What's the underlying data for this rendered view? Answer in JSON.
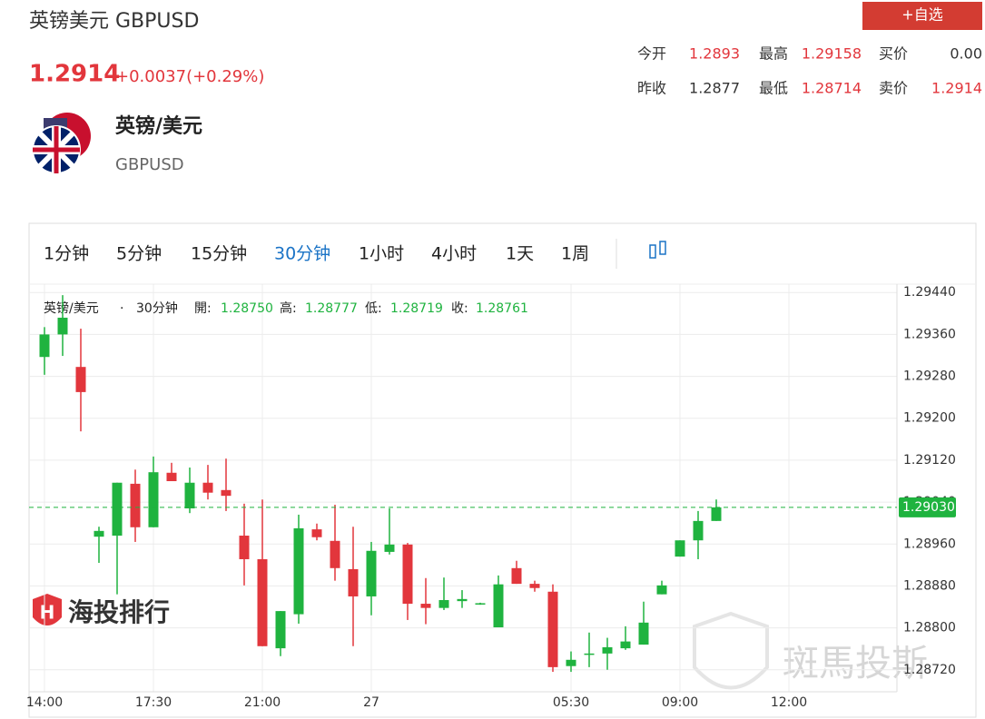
{
  "header": {
    "title": "英镑美元 GBPUSD",
    "price": "1.2914",
    "change": "+0.0037(+0.29%)",
    "button": "+自选"
  },
  "quotes": [
    {
      "label": "今开",
      "value": "1.2893"
    },
    {
      "label": "最高",
      "value": "1.29158"
    },
    {
      "label": "买价",
      "value": "0.00"
    },
    {
      "label": "昨收",
      "value": "1.2877"
    },
    {
      "label": "最低",
      "value": "1.28714"
    },
    {
      "label": "卖价",
      "value": "1.2914"
    }
  ],
  "instrument": {
    "name": "英镑/美元",
    "code": "GBPUSD"
  },
  "tabs": [
    "1分钟",
    "5分钟",
    "15分钟",
    "30分钟",
    "1小时",
    "4小时",
    "1天",
    "1周"
  ],
  "active_tab": 3,
  "watermarks": [
    "海投排行",
    "斑馬投斯"
  ],
  "chart_data": {
    "type": "candlestick",
    "info": {
      "name": "英镑/美元",
      "separator": "·",
      "interval": "30分钟",
      "open_label": "開:",
      "open": "1.28750",
      "high_label": "高:",
      "high": "1.28777",
      "low_label": "低:",
      "low": "1.28719",
      "close_label": "收:",
      "close": "1.28761"
    },
    "open": [
      1.29317,
      1.2936,
      1.29298,
      1.28974,
      1.28976,
      1.29075,
      1.28992,
      1.29096,
      1.29028,
      1.29077,
      1.29063,
      1.28976,
      1.28931,
      1.28761,
      1.28826,
      1.28988,
      1.28966,
      1.28912,
      1.2886,
      1.28945,
      1.28959,
      1.28846,
      1.28838,
      1.28851,
      1.28846,
      1.28801,
      1.28914,
      1.28884,
      1.28869,
      1.28727,
      1.28749,
      1.28751,
      1.28761,
      1.28768,
      1.28864,
      1.28936,
      1.28967,
      1.29004
    ],
    "high": [
      1.29374,
      1.29435,
      1.29371,
      1.28993,
      1.29077,
      1.29102,
      1.29127,
      1.29115,
      1.29106,
      1.29111,
      1.29123,
      1.29037,
      1.29045,
      1.28832,
      1.29016,
      1.28999,
      1.29035,
      1.28993,
      1.28964,
      1.29028,
      1.28962,
      1.28895,
      1.28896,
      1.28872,
      1.28848,
      1.289,
      1.28928,
      1.2889,
      1.28883,
      1.28755,
      1.28791,
      1.28781,
      1.28803,
      1.2885,
      1.2889,
      1.28967,
      1.29023,
      1.29045
    ],
    "low": [
      1.29283,
      1.29319,
      1.29175,
      1.28924,
      1.28864,
      1.28964,
      1.28992,
      1.2908,
      1.29019,
      1.29045,
      1.29023,
      1.28881,
      1.28765,
      1.28746,
      1.28808,
      1.28967,
      1.2889,
      1.28765,
      1.28824,
      1.2894,
      1.28815,
      1.28807,
      1.28834,
      1.28838,
      1.28844,
      1.28801,
      1.28884,
      1.28869,
      1.28716,
      1.28716,
      1.28725,
      1.2872,
      1.28758,
      1.28768,
      1.28864,
      1.28936,
      1.28931,
      1.29004
    ],
    "close": [
      1.2936,
      1.29392,
      1.2925,
      1.28985,
      1.29077,
      1.28992,
      1.29097,
      1.2908,
      1.29077,
      1.29058,
      1.29052,
      1.28931,
      1.28765,
      1.28832,
      1.2899,
      1.28973,
      1.28914,
      1.2886,
      1.28947,
      1.28959,
      1.28846,
      1.28838,
      1.28853,
      1.28855,
      1.28847,
      1.28883,
      1.28884,
      1.28876,
      1.28725,
      1.28739,
      1.28751,
      1.28763,
      1.28774,
      1.2881,
      1.28881,
      1.28967,
      1.29004,
      1.2903
    ],
    "up_color": "#1fb33f",
    "down_color": "#e2363c",
    "last_price": {
      "value": 1.2903,
      "label": "1.29030"
    },
    "xlim": [
      -0.85,
      46.95
    ],
    "xticks": [
      {
        "value": 0,
        "label": "14:00"
      },
      {
        "value": 6,
        "label": "17:30"
      },
      {
        "value": 12,
        "label": "21:00"
      },
      {
        "value": 18,
        "label": "27"
      },
      {
        "value": 29,
        "label": "05:30"
      },
      {
        "value": 35,
        "label": "09:00"
      },
      {
        "value": 41,
        "label": "12:00"
      }
    ],
    "ylim": [
      1.28678,
      1.29456
    ],
    "yticks": [
      {
        "value": 1.2944,
        "label": "1.29440"
      },
      {
        "value": 1.2936,
        "label": "1.29360"
      },
      {
        "value": 1.2928,
        "label": "1.29280"
      },
      {
        "value": 1.292,
        "label": "1.29200"
      },
      {
        "value": 1.2912,
        "label": "1.29120"
      },
      {
        "value": 1.2904,
        "label": "1.29040"
      },
      {
        "value": 1.2896,
        "label": "1.28960"
      },
      {
        "value": 1.2888,
        "label": "1.28880"
      },
      {
        "value": 1.288,
        "label": "1.28800"
      },
      {
        "value": 1.2872,
        "label": "1.28720"
      }
    ],
    "grid": true
  }
}
